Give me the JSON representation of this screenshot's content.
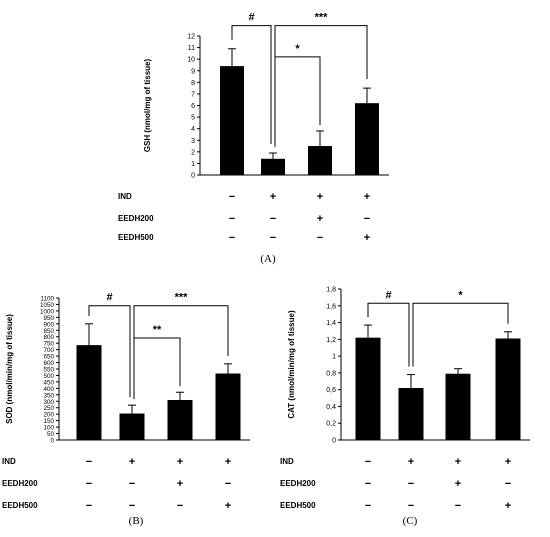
{
  "chart_data": [
    {
      "type": "bar",
      "panel_label": "(A)",
      "ylabel": "GSH (nmol/mg of tissue)",
      "ylim": [
        0,
        12
      ],
      "yticks": [
        0,
        1,
        2,
        3,
        4,
        5,
        6,
        7,
        8,
        9,
        10,
        11,
        12
      ],
      "ytick_labels": [
        "0",
        "1",
        "2",
        "3",
        "4",
        "5",
        "6",
        "7",
        "8",
        "9",
        "10",
        "11",
        "12"
      ],
      "bar_color": "#000000",
      "values": [
        9.4,
        1.4,
        2.5,
        6.2
      ],
      "errors": [
        1.5,
        0.5,
        1.3,
        1.3
      ],
      "treatment_rows": [
        {
          "label": "IND",
          "signs": [
            "−",
            "+",
            "+",
            "+"
          ]
        },
        {
          "label": "EEDH200",
          "signs": [
            "−",
            "−",
            "+",
            "−"
          ]
        },
        {
          "label": "EEDH500",
          "signs": [
            "−",
            "−",
            "−",
            "+"
          ]
        }
      ],
      "significance": [
        {
          "from": 0,
          "to": 1,
          "label": "#",
          "level": 12.9
        },
        {
          "from": 1,
          "to": 3,
          "label": "***",
          "level": 12.9
        },
        {
          "from": 1,
          "to": 2,
          "label": "*",
          "level": 10.2
        }
      ]
    },
    {
      "type": "bar",
      "panel_label": "(B)",
      "ylabel": "SOD (nmol/min/mg of tissue)",
      "ylim": [
        0,
        1100
      ],
      "yticks": [
        0,
        50,
        100,
        150,
        200,
        250,
        300,
        350,
        400,
        450,
        500,
        550,
        600,
        650,
        700,
        750,
        800,
        850,
        900,
        950,
        1000,
        1050,
        1100
      ],
      "ytick_labels": [
        "0",
        "50",
        "100",
        "150",
        "200",
        "250",
        "300",
        "350",
        "400",
        "450",
        "500",
        "550",
        "600",
        "650",
        "700",
        "750",
        "800",
        "850",
        "900",
        "950",
        "1000",
        "1050",
        "1100"
      ],
      "bar_color": "#000000",
      "values": [
        735,
        205,
        310,
        515
      ],
      "errors": [
        165,
        65,
        60,
        75
      ],
      "treatment_rows": [
        {
          "label": "IND",
          "signs": [
            "−",
            "+",
            "+",
            "+"
          ]
        },
        {
          "label": "EEDH200",
          "signs": [
            "−",
            "−",
            "+",
            "−"
          ]
        },
        {
          "label": "EEDH500",
          "signs": [
            "−",
            "−",
            "−",
            "+"
          ]
        }
      ],
      "significance": [
        {
          "from": 0,
          "to": 1,
          "label": "#",
          "level": 1040
        },
        {
          "from": 1,
          "to": 3,
          "label": "***",
          "level": 1040
        },
        {
          "from": 1,
          "to": 2,
          "label": "**",
          "level": 790
        }
      ]
    },
    {
      "type": "bar",
      "panel_label": "(C)",
      "ylabel": "CAT (nmol/min/mg of tissue)",
      "ylim": [
        0,
        1.8
      ],
      "yticks": [
        0,
        0.2,
        0.4,
        0.6,
        0.8,
        1.0,
        1.2,
        1.4,
        1.6,
        1.8
      ],
      "ytick_labels": [
        "0",
        "0,2",
        "0,4",
        "0,6",
        "0,8",
        "1",
        "1,2",
        "1,4",
        "1,6",
        "1,8"
      ],
      "bar_color": "#000000",
      "values": [
        1.22,
        0.62,
        0.79,
        1.21
      ],
      "errors": [
        0.15,
        0.16,
        0.06,
        0.08
      ],
      "treatment_rows": [
        {
          "label": "IND",
          "signs": [
            "−",
            "+",
            "+",
            "+"
          ]
        },
        {
          "label": "EEDH200",
          "signs": [
            "−",
            "−",
            "+",
            "−"
          ]
        },
        {
          "label": "EEDH500",
          "signs": [
            "−",
            "−",
            "−",
            "+"
          ]
        }
      ],
      "significance": [
        {
          "from": 0,
          "to": 1,
          "label": "#",
          "level": 1.63
        },
        {
          "from": 1,
          "to": 3,
          "label": "*",
          "level": 1.63
        }
      ]
    }
  ]
}
